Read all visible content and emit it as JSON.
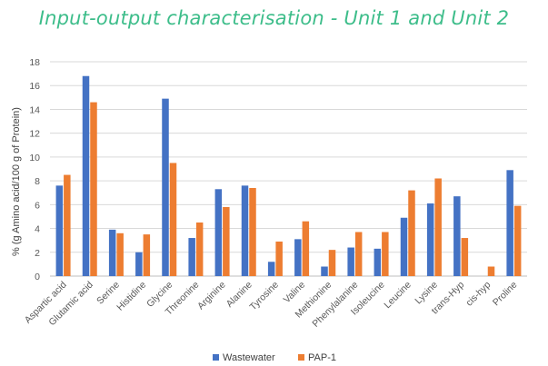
{
  "chart_data": {
    "type": "bar",
    "title": "Input-output characterisation - Unit 1 and Unit 2",
    "ylabel": "% (g Amino acid/100 g of  Protein)",
    "xlabel": "",
    "ylim": [
      0,
      18
    ],
    "yticks": [
      0,
      2,
      4,
      6,
      8,
      10,
      12,
      14,
      16,
      18
    ],
    "grid": true,
    "legend_position": "bottom",
    "categories": [
      "Aspartic acid",
      "Glutamic acid",
      "Serine",
      "Histidine",
      "Glycine",
      "Threonine",
      "Arginine",
      "Alanine",
      "Tyrosine",
      "Valine",
      "Methionine",
      "Phenylalanine",
      "Isoleucine",
      "Leucine",
      "Lysine",
      "trans-Hyp",
      "cis-hyp",
      "Proline"
    ],
    "series": [
      {
        "name": "Wastewater",
        "color": "#4472c4",
        "values": [
          7.6,
          16.8,
          3.9,
          2.0,
          14.9,
          3.2,
          7.3,
          7.6,
          1.2,
          3.1,
          0.8,
          2.4,
          2.3,
          4.9,
          6.1,
          6.7,
          0,
          8.9
        ]
      },
      {
        "name": "PAP-1",
        "color": "#ed7d31",
        "values": [
          8.5,
          14.6,
          3.6,
          3.5,
          9.5,
          4.5,
          5.8,
          7.4,
          2.9,
          4.6,
          2.2,
          3.7,
          3.7,
          7.2,
          8.2,
          3.2,
          0.8,
          5.9
        ]
      }
    ]
  }
}
